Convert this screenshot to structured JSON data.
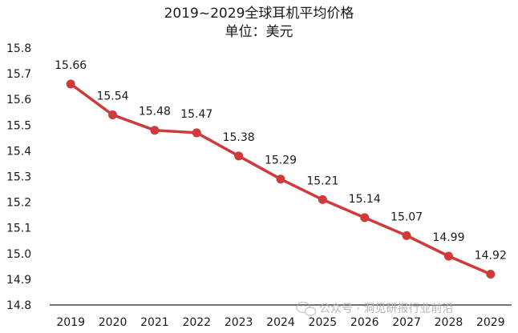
{
  "chart_data": {
    "type": "line",
    "title": "2019~2029全球耳机平均价格",
    "subtitle": "单位：美元",
    "categories": [
      "2019",
      "2020",
      "2021",
      "2022",
      "2023",
      "2024",
      "2025",
      "2026",
      "2027",
      "2028",
      "2029"
    ],
    "series": [
      {
        "values": [
          15.66,
          15.54,
          15.48,
          15.47,
          15.38,
          15.29,
          15.21,
          15.14,
          15.07,
          14.99,
          14.92
        ],
        "color": "#d03a3a"
      }
    ],
    "data_labels": [
      "15.66",
      "15.54",
      "15.48",
      "15.47",
      "15.38",
      "15.29",
      "15.21",
      "15.14",
      "15.07",
      "14.99",
      "14.92"
    ],
    "y_ticks": [
      "15.8",
      "15.7",
      "15.6",
      "15.5",
      "15.4",
      "15.3",
      "15.2",
      "15.1",
      "15.0",
      "14.9",
      "14.8"
    ],
    "ylim": [
      14.8,
      15.8
    ],
    "grid": false,
    "legend": "none"
  },
  "watermark": {
    "text": "公众号 · 洞见研报行业前沿",
    "icon": "wechat-icon"
  }
}
